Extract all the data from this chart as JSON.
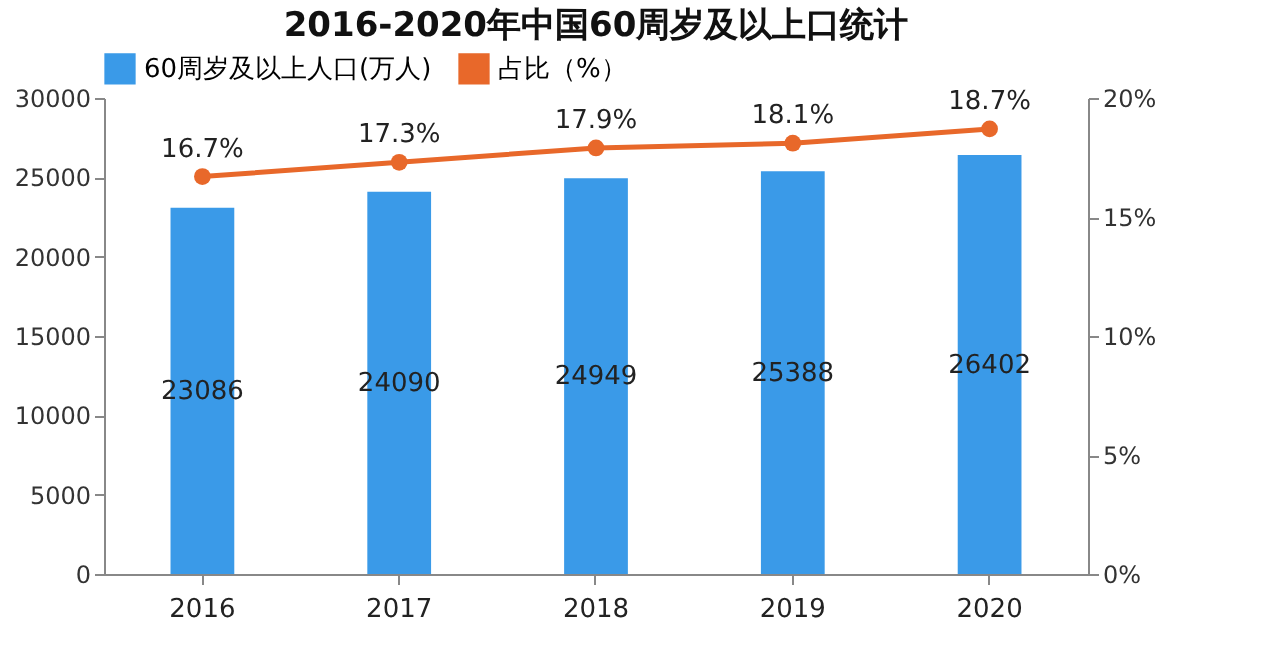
{
  "chart_data": {
    "type": "bar",
    "title": "2016-2020年中国60周岁及以上口统计",
    "categories": [
      "2016",
      "2017",
      "2018",
      "2019",
      "2020"
    ],
    "series": [
      {
        "name": "60周岁及以上人口(万人)",
        "color": "#3a9ae8",
        "values": [
          23086,
          24090,
          24949,
          25388,
          26402
        ],
        "value_labels": [
          "23086",
          "24090",
          "24949",
          "25388",
          "26402"
        ]
      },
      {
        "name": "占比（%）",
        "type": "line",
        "axis": "y2",
        "color": "#e8682a",
        "values": [
          16.7,
          17.3,
          17.9,
          18.1,
          18.7
        ],
        "value_labels": [
          "16.7%",
          "17.3%",
          "17.9%",
          "18.1%",
          "18.7%"
        ],
        "marker": "circle"
      }
    ],
    "ylim": [
      0,
      30000
    ],
    "yticks": [
      0,
      5000,
      10000,
      15000,
      20000,
      25000,
      30000
    ],
    "y2lim": [
      0,
      20
    ],
    "y2ticks": [
      {
        "value": 0,
        "label": "0%"
      },
      {
        "value": 5,
        "label": "5%"
      },
      {
        "value": 10,
        "label": "10%"
      },
      {
        "value": 15,
        "label": "15%"
      },
      {
        "value": 20,
        "label": "20%"
      }
    ],
    "grid": false,
    "legend": "top"
  }
}
